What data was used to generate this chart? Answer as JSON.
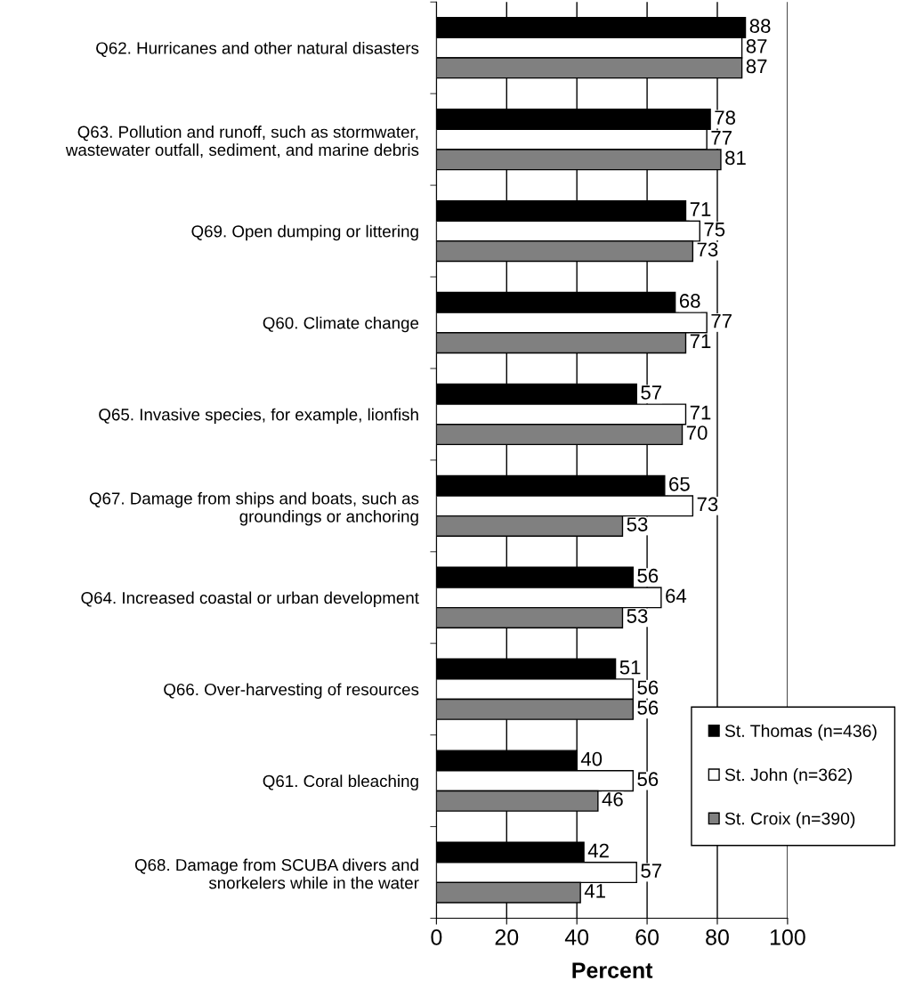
{
  "chart_data": {
    "type": "bar",
    "orientation": "horizontal",
    "xlabel": "Percent",
    "categories": [
      "Q62. Hurricanes and other natural disasters",
      "Q63. Pollution and runoff, such as stormwater,\nwastewater outfall, sediment, and marine debris",
      "Q69. Open dumping or littering",
      "Q60. Climate change",
      "Q65. Invasive species, for example, lionfish",
      "Q67. Damage from ships and boats, such as\ngroundings or anchoring",
      "Q64. Increased coastal or urban development",
      "Q66. Over-harvesting of resources",
      "Q61. Coral bleaching",
      "Q68. Damage from SCUBA divers and\nsnorkelers while in the water"
    ],
    "series": [
      {
        "name": "St. Thomas (n=436)",
        "color": "#000000",
        "values": [
          88,
          78,
          71,
          68,
          57,
          65,
          56,
          51,
          40,
          42
        ]
      },
      {
        "name": "St. John (n=362)",
        "color": "#ffffff",
        "values": [
          87,
          77,
          75,
          77,
          71,
          73,
          64,
          56,
          56,
          57
        ]
      },
      {
        "name": "St. Croix (n=390)",
        "color": "#808080",
        "values": [
          87,
          81,
          73,
          71,
          70,
          53,
          53,
          56,
          46,
          41
        ]
      }
    ],
    "xlim": [
      0,
      100
    ],
    "xticks": [
      0,
      20,
      40,
      60,
      80,
      100
    ],
    "grid": "x",
    "legend": "bottom right",
    "data_labels": true
  }
}
